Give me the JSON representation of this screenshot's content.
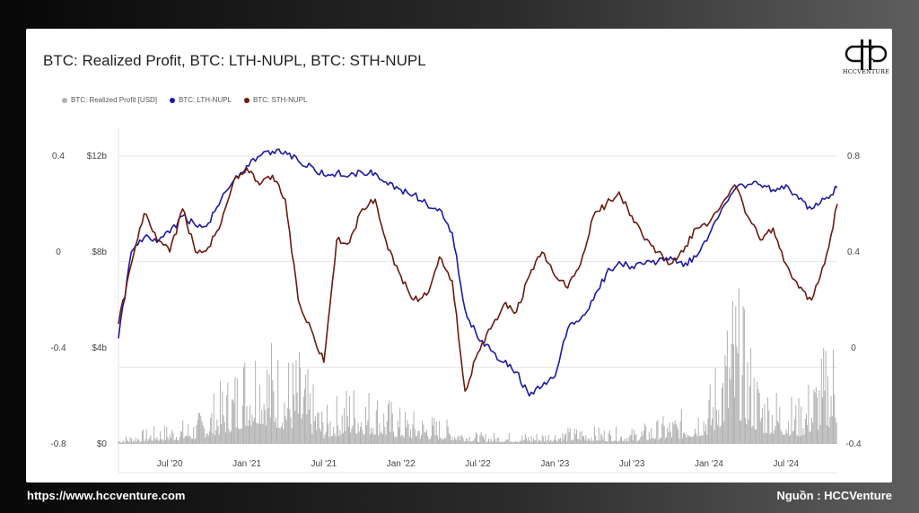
{
  "chart_data": {
    "type": "line",
    "title": "BTC: Realized Profit, BTC: LTH-NUPL, BTC: STH-NUPL",
    "x_ticks": [
      "Jul '20",
      "Jan '21",
      "Jul '21",
      "Jan '22",
      "Jul '22",
      "Jan '23",
      "Jul '23",
      "Jan '24",
      "Jul '24"
    ],
    "x_range": [
      "2020-03",
      "2024-11"
    ],
    "axes": {
      "left_outer": {
        "ticks": [
          "0.4",
          "0",
          "-0.4",
          "-0.8"
        ],
        "range": [
          -0.8,
          0.4
        ],
        "series": "BTC: STH-NUPL"
      },
      "left_inner": {
        "ticks": [
          "$12b",
          "$8b",
          "$4b",
          "$0"
        ],
        "range": [
          0,
          12
        ],
        "unit": "USD billions",
        "series": "BTC: Realized Profit [USD]"
      },
      "right": {
        "ticks": [
          "0.8",
          "0.4",
          "0",
          "-0.4"
        ],
        "range": [
          -0.4,
          0.8
        ],
        "series": "BTC: LTH-NUPL"
      }
    },
    "legend_position": "top-left",
    "series": [
      {
        "name": "BTC: Realized Profit [USD]",
        "color": "#b0b0b0",
        "style": "spikes",
        "axis": "left_inner",
        "points": [
          [
            "2020-03",
            0.3
          ],
          [
            "2020-06",
            0.8
          ],
          [
            "2020-09",
            1.2
          ],
          [
            "2020-12",
            3.5
          ],
          [
            "2021-01",
            4.8
          ],
          [
            "2021-02",
            5.5
          ],
          [
            "2021-04",
            4.0
          ],
          [
            "2021-05",
            4.2
          ],
          [
            "2021-07",
            1.5
          ],
          [
            "2021-09",
            2.8
          ],
          [
            "2021-11",
            2.5
          ],
          [
            "2022-01",
            1.6
          ],
          [
            "2022-04",
            1.2
          ],
          [
            "2022-07",
            0.5
          ],
          [
            "2022-11",
            0.5
          ],
          [
            "2023-03",
            0.8
          ],
          [
            "2023-07",
            0.7
          ],
          [
            "2023-11",
            1.5
          ],
          [
            "2024-01",
            2.5
          ],
          [
            "2024-03",
            7.5
          ],
          [
            "2024-05",
            3.0
          ],
          [
            "2024-08",
            2.0
          ],
          [
            "2024-11",
            5.5
          ]
        ]
      },
      {
        "name": "BTC: LTH-NUPL",
        "color": "#1c1aa0",
        "style": "line",
        "axis": "right",
        "points": [
          [
            "2020-03",
            0.04
          ],
          [
            "2020-04",
            0.4
          ],
          [
            "2020-05",
            0.46
          ],
          [
            "2020-06",
            0.44
          ],
          [
            "2020-07",
            0.48
          ],
          [
            "2020-08",
            0.55
          ],
          [
            "2020-09",
            0.51
          ],
          [
            "2020-10",
            0.52
          ],
          [
            "2020-11",
            0.62
          ],
          [
            "2020-12",
            0.7
          ],
          [
            "2021-01",
            0.76
          ],
          [
            "2021-02",
            0.8
          ],
          [
            "2021-03",
            0.82
          ],
          [
            "2021-04",
            0.82
          ],
          [
            "2021-05",
            0.78
          ],
          [
            "2021-06",
            0.76
          ],
          [
            "2021-07",
            0.72
          ],
          [
            "2021-08",
            0.73
          ],
          [
            "2021-09",
            0.72
          ],
          [
            "2021-10",
            0.73
          ],
          [
            "2021-11",
            0.73
          ],
          [
            "2021-12",
            0.68
          ],
          [
            "2022-01",
            0.66
          ],
          [
            "2022-02",
            0.64
          ],
          [
            "2022-03",
            0.6
          ],
          [
            "2022-04",
            0.58
          ],
          [
            "2022-05",
            0.48
          ],
          [
            "2022-06",
            0.16
          ],
          [
            "2022-07",
            0.04
          ],
          [
            "2022-08",
            -0.01
          ],
          [
            "2022-09",
            -0.06
          ],
          [
            "2022-10",
            -0.1
          ],
          [
            "2022-11",
            -0.2
          ],
          [
            "2022-12",
            -0.16
          ],
          [
            "2023-01",
            -0.12
          ],
          [
            "2023-02",
            0.08
          ],
          [
            "2023-03",
            0.12
          ],
          [
            "2023-04",
            0.2
          ],
          [
            "2023-05",
            0.31
          ],
          [
            "2023-06",
            0.36
          ],
          [
            "2023-07",
            0.34
          ],
          [
            "2023-08",
            0.35
          ],
          [
            "2023-09",
            0.36
          ],
          [
            "2023-10",
            0.38
          ],
          [
            "2023-11",
            0.34
          ],
          [
            "2023-12",
            0.38
          ],
          [
            "2024-01",
            0.47
          ],
          [
            "2024-02",
            0.58
          ],
          [
            "2024-03",
            0.66
          ],
          [
            "2024-04",
            0.68
          ],
          [
            "2024-05",
            0.68
          ],
          [
            "2024-06",
            0.66
          ],
          [
            "2024-07",
            0.68
          ],
          [
            "2024-08",
            0.62
          ],
          [
            "2024-09",
            0.58
          ],
          [
            "2024-10",
            0.62
          ],
          [
            "2024-11",
            0.67
          ]
        ]
      },
      {
        "name": "BTC: STH-NUPL",
        "color": "#6b1a0e",
        "style": "line",
        "axis": "left_outer",
        "points": [
          [
            "2020-03",
            -0.3
          ],
          [
            "2020-04",
            -0.05
          ],
          [
            "2020-05",
            0.16
          ],
          [
            "2020-06",
            0.05
          ],
          [
            "2020-07",
            0.0
          ],
          [
            "2020-08",
            0.18
          ],
          [
            "2020-09",
            0.0
          ],
          [
            "2020-10",
            0.02
          ],
          [
            "2020-11",
            0.12
          ],
          [
            "2020-12",
            0.3
          ],
          [
            "2021-01",
            0.35
          ],
          [
            "2021-02",
            0.28
          ],
          [
            "2021-03",
            0.32
          ],
          [
            "2021-04",
            0.22
          ],
          [
            "2021-05",
            -0.2
          ],
          [
            "2021-06",
            -0.32
          ],
          [
            "2021-07",
            -0.46
          ],
          [
            "2021-08",
            0.05
          ],
          [
            "2021-09",
            0.04
          ],
          [
            "2021-10",
            0.18
          ],
          [
            "2021-11",
            0.22
          ],
          [
            "2021-12",
            0.01
          ],
          [
            "2022-01",
            -0.1
          ],
          [
            "2022-02",
            -0.2
          ],
          [
            "2022-03",
            -0.18
          ],
          [
            "2022-04",
            -0.02
          ],
          [
            "2022-05",
            -0.12
          ],
          [
            "2022-06",
            -0.58
          ],
          [
            "2022-07",
            -0.42
          ],
          [
            "2022-08",
            -0.32
          ],
          [
            "2022-09",
            -0.22
          ],
          [
            "2022-10",
            -0.25
          ],
          [
            "2022-11",
            -0.1
          ],
          [
            "2022-12",
            0.0
          ],
          [
            "2023-01",
            -0.1
          ],
          [
            "2023-02",
            -0.15
          ],
          [
            "2023-03",
            -0.05
          ],
          [
            "2023-04",
            0.15
          ],
          [
            "2023-05",
            0.2
          ],
          [
            "2023-06",
            0.25
          ],
          [
            "2023-07",
            0.15
          ],
          [
            "2023-08",
            0.05
          ],
          [
            "2023-09",
            0.0
          ],
          [
            "2023-10",
            -0.05
          ],
          [
            "2023-11",
            0.0
          ],
          [
            "2023-12",
            0.1
          ],
          [
            "2024-01",
            0.12
          ],
          [
            "2024-02",
            0.2
          ],
          [
            "2024-03",
            0.28
          ],
          [
            "2024-04",
            0.15
          ],
          [
            "2024-05",
            0.05
          ],
          [
            "2024-06",
            0.1
          ],
          [
            "2024-07",
            -0.05
          ],
          [
            "2024-08",
            -0.15
          ],
          [
            "2024-09",
            -0.2
          ],
          [
            "2024-10",
            -0.05
          ],
          [
            "2024-11",
            0.2
          ]
        ]
      }
    ]
  },
  "logo_text": "HCCVENTURE",
  "footer": {
    "left": "https://www.hccventure.com",
    "right": "Nguồn : HCCVenture"
  }
}
